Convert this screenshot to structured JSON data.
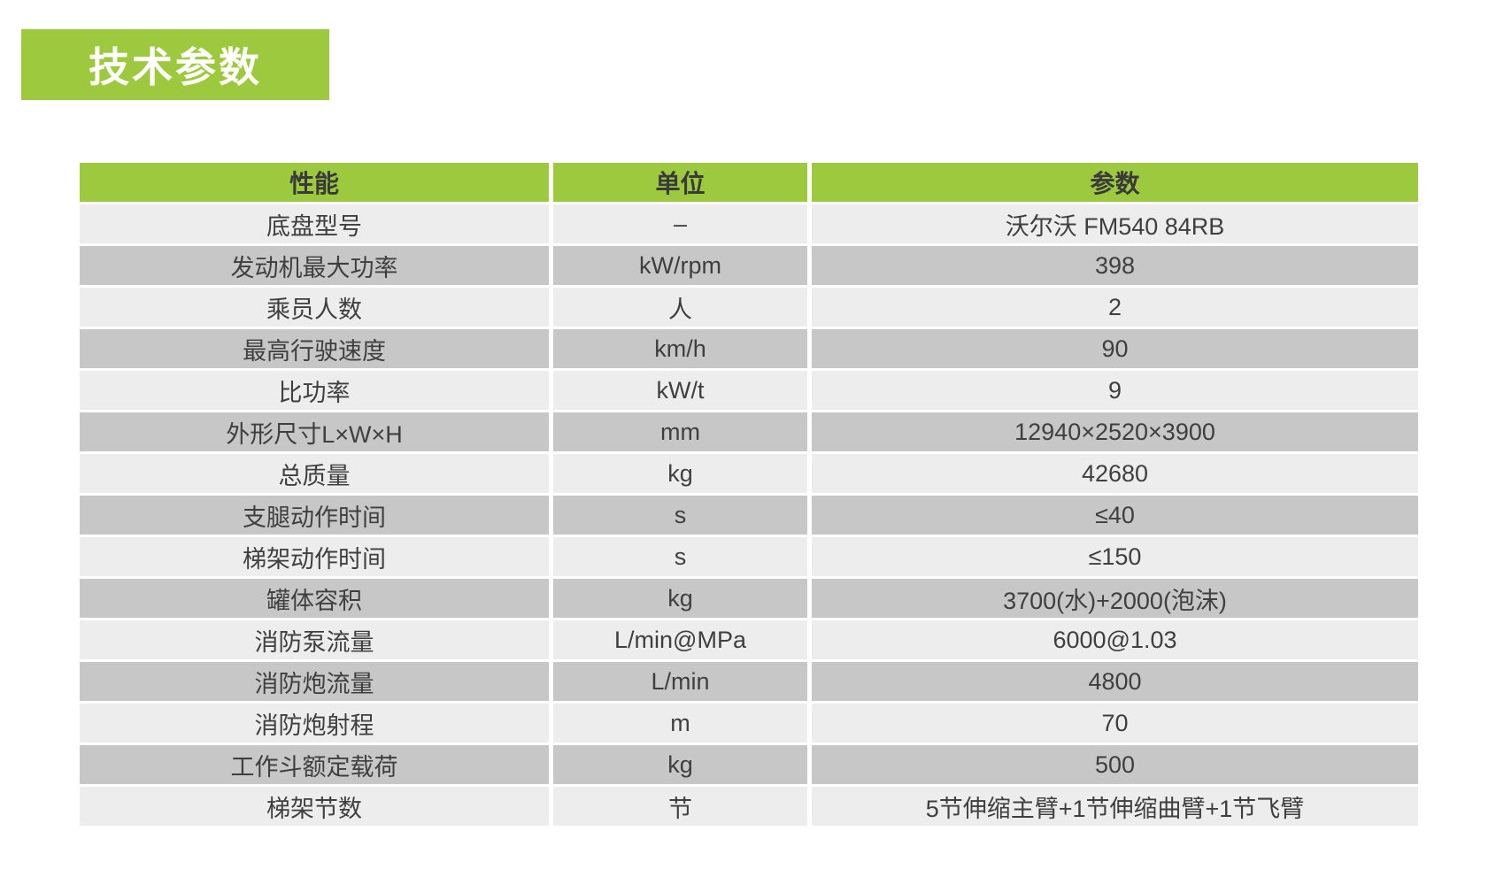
{
  "page": {
    "title": "技术参数"
  },
  "colors": {
    "green": "#9DC93E",
    "row_light": "#EDEDED",
    "row_dark": "#C7C7C7",
    "text": "#3F3F3F",
    "title_text": "#FFFFFF"
  },
  "table": {
    "columns": [
      "性能",
      "单位",
      "参数"
    ],
    "rows": [
      {
        "name": "底盘型号",
        "unit": "–",
        "value": "沃尔沃 FM540 84RB"
      },
      {
        "name": "发动机最大功率",
        "unit": "kW/rpm",
        "value": "398"
      },
      {
        "name": "乘员人数",
        "unit": "人",
        "value": "2"
      },
      {
        "name": "最高行驶速度",
        "unit": "km/h",
        "value": "90"
      },
      {
        "name": "比功率",
        "unit": "kW/t",
        "value": "9"
      },
      {
        "name": "外形尺寸L×W×H",
        "unit": "mm",
        "value": "12940×2520×3900"
      },
      {
        "name": "总质量",
        "unit": "kg",
        "value": "42680"
      },
      {
        "name": "支腿动作时间",
        "unit": "s",
        "value": "≤40"
      },
      {
        "name": "梯架动作时间",
        "unit": "s",
        "value": "≤150"
      },
      {
        "name": "罐体容积",
        "unit": "kg",
        "value": "3700(水)+2000(泡沫)"
      },
      {
        "name": "消防泵流量",
        "unit": "L/min@MPa",
        "value": "6000@1.03"
      },
      {
        "name": "消防炮流量",
        "unit": "L/min",
        "value": "4800"
      },
      {
        "name": "消防炮射程",
        "unit": "m",
        "value": "70"
      },
      {
        "name": "工作斗额定载荷",
        "unit": "kg",
        "value": "500"
      },
      {
        "name": "梯架节数",
        "unit": "节",
        "value": "5节伸缩主臂+1节伸缩曲臂+1节飞臂"
      }
    ]
  }
}
